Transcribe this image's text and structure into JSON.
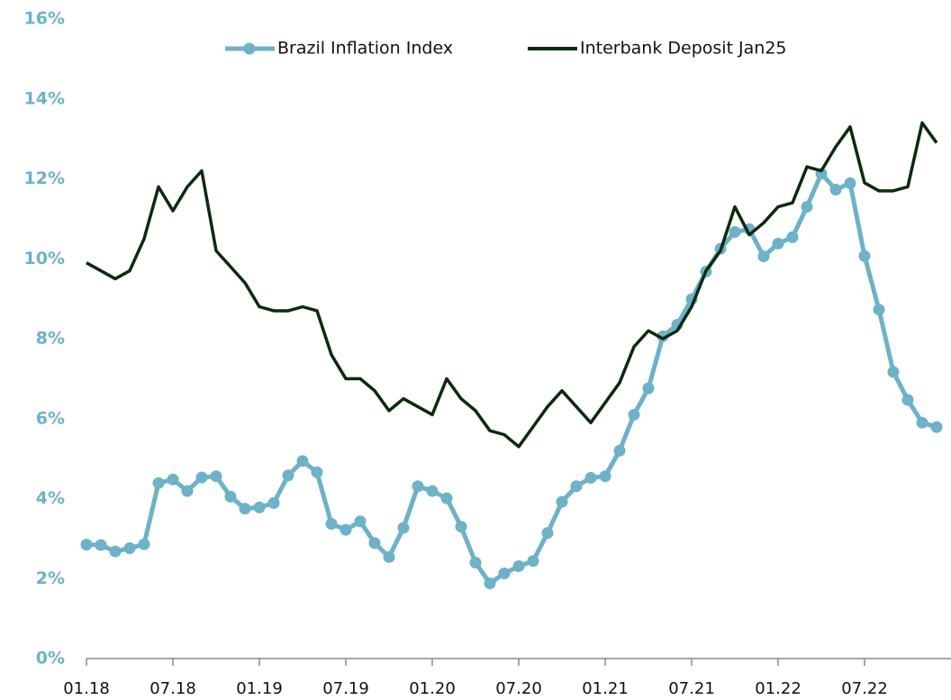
{
  "chart_data": {
    "type": "line",
    "categories": [
      "01.18",
      null,
      null,
      null,
      null,
      null,
      "07.18",
      null,
      null,
      null,
      null,
      null,
      "01.19",
      null,
      null,
      null,
      null,
      null,
      "07.19",
      null,
      null,
      null,
      null,
      null,
      "01.20",
      null,
      null,
      null,
      null,
      null,
      "07.20",
      null,
      null,
      null,
      null,
      null,
      "01.21",
      null,
      null,
      null,
      null,
      null,
      "07.21",
      null,
      null,
      null,
      null,
      null,
      "01.22",
      null,
      null,
      null,
      null,
      null,
      "07.22",
      null,
      null,
      null,
      null,
      null
    ],
    "series": [
      {
        "name": "Brazil Inflation Index",
        "color": "#6cb2c8",
        "markers": true,
        "values": [
          2.85,
          2.84,
          2.68,
          2.76,
          2.86,
          4.39,
          4.48,
          4.19,
          4.53,
          4.56,
          4.05,
          3.75,
          3.78,
          3.89,
          4.58,
          4.94,
          4.66,
          3.37,
          3.22,
          3.43,
          2.89,
          2.54,
          3.27,
          4.31,
          4.19,
          4.01,
          3.3,
          2.4,
          1.88,
          2.13,
          2.31,
          2.44,
          3.14,
          3.92,
          4.31,
          4.52,
          4.56,
          5.2,
          6.1,
          6.76,
          8.06,
          8.35,
          8.99,
          9.68,
          10.25,
          10.67,
          10.74,
          10.06,
          10.38,
          10.54,
          11.3,
          12.13,
          11.73,
          11.89,
          10.07,
          8.73,
          7.17,
          6.47,
          5.9,
          5.79
        ]
      },
      {
        "name": "Interbank Deposit Jan25",
        "color": "#0b2a0e",
        "markers": false,
        "values": [
          9.9,
          9.7,
          9.5,
          9.7,
          10.5,
          11.8,
          11.2,
          11.8,
          12.2,
          10.2,
          9.8,
          9.4,
          8.8,
          8.7,
          8.7,
          8.8,
          8.7,
          7.6,
          7.0,
          7.0,
          6.7,
          6.2,
          6.5,
          6.3,
          6.1,
          7.0,
          6.5,
          6.2,
          5.7,
          5.6,
          5.3,
          5.8,
          6.3,
          6.7,
          6.3,
          5.9,
          6.4,
          6.9,
          7.8,
          8.2,
          8.0,
          8.2,
          8.8,
          9.7,
          10.2,
          11.3,
          10.6,
          10.9,
          11.3,
          11.4,
          12.3,
          12.2,
          12.8,
          13.3,
          11.9,
          11.7,
          11.7,
          11.8,
          13.4,
          12.9
        ]
      }
    ],
    "ylim": [
      0,
      16
    ],
    "yticks": [
      {
        "value": 0,
        "label": "0%"
      },
      {
        "value": 2,
        "label": "2%"
      },
      {
        "value": 4,
        "label": "4%"
      },
      {
        "value": 6,
        "label": "6%"
      },
      {
        "value": 8,
        "label": "8%"
      },
      {
        "value": 10,
        "label": "10%"
      },
      {
        "value": 12,
        "label": "12%"
      },
      {
        "value": 14,
        "label": "14%"
      },
      {
        "value": 16,
        "label": "16%"
      }
    ],
    "legend": "top"
  }
}
